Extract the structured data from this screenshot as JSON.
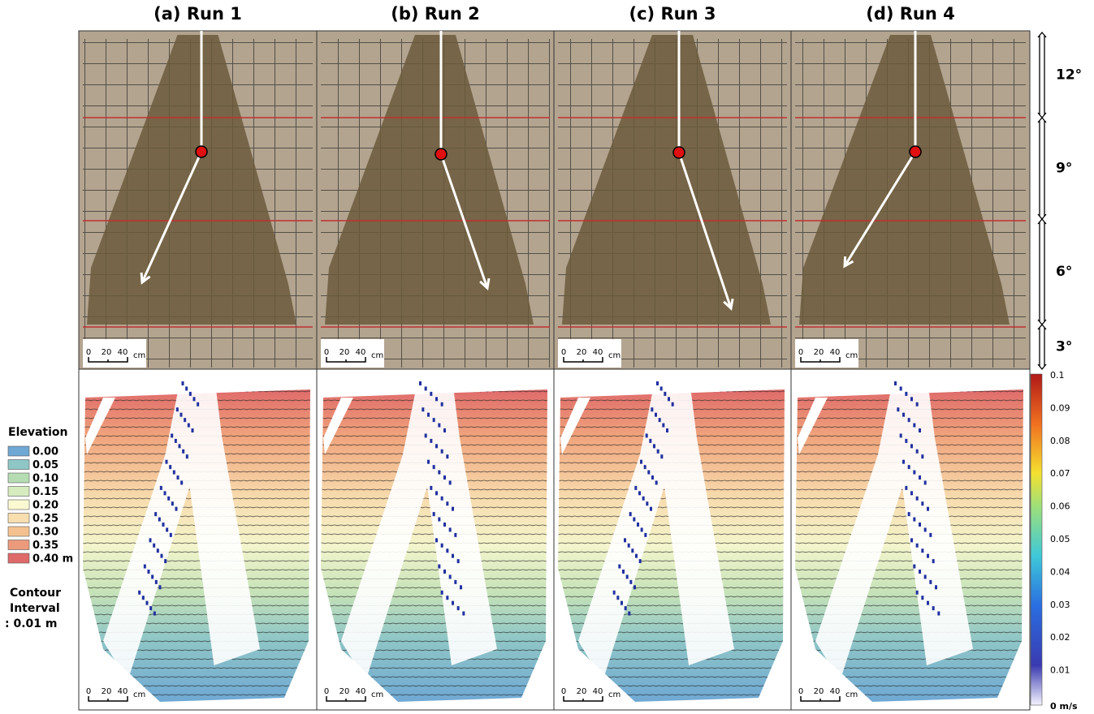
{
  "panels": [
    {
      "title": "(a) Run 1"
    },
    {
      "title": "(b) Run 2"
    },
    {
      "title": "(c) Run 3"
    },
    {
      "title": "(d) Run 4"
    }
  ],
  "scale_bar": {
    "ticks": [
      "0",
      "20",
      "40"
    ],
    "unit": "cm"
  },
  "slopes": [
    "12°",
    "9°",
    "6°",
    "3°"
  ],
  "legend": {
    "title": "Elevation",
    "entries": [
      {
        "label": "0.00",
        "color": "#6fa8d4"
      },
      {
        "label": "0.05",
        "color": "#8fc6c6"
      },
      {
        "label": "0.10",
        "color": "#b6dcb4"
      },
      {
        "label": "0.15",
        "color": "#d6ecbf"
      },
      {
        "label": "0.20",
        "color": "#fbf9d2"
      },
      {
        "label": "0.25",
        "color": "#f9deb0"
      },
      {
        "label": "0.30",
        "color": "#f4c290"
      },
      {
        "label": "0.35",
        "color": "#ec9a7c"
      },
      {
        "label": "0.40 m",
        "color": "#df6a6a"
      }
    ],
    "note": [
      "Contour",
      "Interval",
      ": 0.01 m"
    ]
  },
  "colorbar": {
    "labels": [
      "0.1",
      "0.09",
      "0.08",
      "0.07",
      "0.06",
      "0.05",
      "0.04",
      "0.03",
      "0.02",
      "0.01",
      "0 m/s"
    ]
  }
}
